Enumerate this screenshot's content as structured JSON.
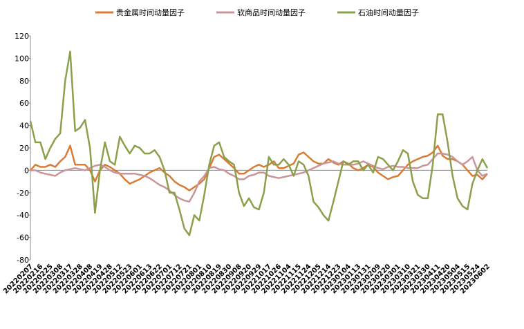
{
  "chart_data": {
    "type": "line",
    "categories": [
      "20220207",
      null,
      "20220216",
      null,
      "20220225",
      null,
      "20220308",
      null,
      "20220317",
      null,
      "20220328",
      null,
      "20220408",
      null,
      "20220419",
      null,
      "20220428",
      null,
      "20220512",
      null,
      "20220523",
      null,
      "20220601",
      null,
      "20220613",
      null,
      "20220622",
      null,
      "20220701",
      null,
      "20220712",
      null,
      "20220721",
      null,
      "20220801",
      null,
      "20220810",
      null,
      "20220819",
      null,
      "20220830",
      null,
      "20220908",
      null,
      "20220920",
      null,
      "20220929",
      null,
      "20221017",
      null,
      "20221026",
      null,
      "20221104",
      null,
      "20221115",
      null,
      "20221124",
      null,
      "20221205",
      null,
      "20221214",
      null,
      "20221223",
      null,
      "20230104",
      null,
      "20230113",
      null,
      "20230131",
      null,
      "20230209",
      null,
      "20230220",
      null,
      "20230301",
      null,
      "20230310",
      null,
      "20230321",
      null,
      "20230330",
      null,
      "20230411",
      null,
      "20230420",
      null,
      "20230504",
      null,
      "20230515",
      null,
      "20230524",
      null,
      "20230602"
    ],
    "series": [
      {
        "name": "贵金属时间动量因子",
        "color": "#d97b35",
        "values": [
          0,
          5,
          3,
          3,
          5,
          3,
          8,
          12,
          22,
          5,
          5,
          5,
          0,
          -10,
          0,
          5,
          3,
          0,
          -3,
          -8,
          -12,
          -10,
          -8,
          -5,
          -2,
          0,
          2,
          -2,
          -5,
          -10,
          -13,
          -15,
          -18,
          -15,
          -12,
          -8,
          2,
          12,
          14,
          10,
          6,
          2,
          -3,
          -3,
          0,
          3,
          5,
          3,
          5,
          8,
          2,
          2,
          4,
          6,
          14,
          16,
          12,
          8,
          6,
          6,
          10,
          7,
          5,
          8,
          6,
          2,
          0,
          2,
          5,
          3,
          -2,
          -5,
          -8,
          -6,
          -5,
          0,
          5,
          8,
          10,
          12,
          13,
          16,
          22,
          13,
          10,
          10,
          8,
          5,
          0,
          -5,
          -4,
          -8,
          -3
        ]
      },
      {
        "name": "软商品时间动量因子",
        "color": "#c9959a",
        "values": [
          0,
          0,
          -2,
          -3,
          -4,
          -5,
          -2,
          0,
          1,
          2,
          1,
          0,
          2,
          4,
          5,
          3,
          0,
          -2,
          -3,
          -3,
          -3,
          -3,
          -4,
          -5,
          -7,
          -10,
          -13,
          -15,
          -18,
          -22,
          -25,
          -27,
          -28,
          -20,
          -10,
          -5,
          2,
          3,
          1,
          0,
          -3,
          -5,
          -8,
          -8,
          -5,
          -4,
          -2,
          -2,
          -5,
          -6,
          -7,
          -6,
          -5,
          -4,
          -3,
          -2,
          0,
          2,
          4,
          6,
          7,
          8,
          6,
          5,
          5,
          5,
          6,
          8,
          6,
          4,
          2,
          1,
          3,
          4,
          3,
          3,
          2,
          2,
          2,
          4,
          5,
          10,
          15,
          15,
          14,
          12,
          8,
          5,
          8,
          12,
          0,
          -5,
          -3
        ]
      },
      {
        "name": "石油时间动量因子",
        "color": "#8aa04a",
        "values": [
          44,
          25,
          25,
          10,
          20,
          28,
          33,
          80,
          106,
          35,
          38,
          45,
          20,
          -38,
          0,
          25,
          8,
          5,
          30,
          22,
          15,
          22,
          20,
          15,
          15,
          18,
          12,
          0,
          -20,
          -20,
          -35,
          -52,
          -58,
          -40,
          -45,
          -22,
          5,
          22,
          25,
          12,
          8,
          5,
          -20,
          -32,
          -25,
          -33,
          -35,
          -20,
          12,
          5,
          5,
          10,
          5,
          -5,
          8,
          5,
          -5,
          -28,
          -33,
          -40,
          -45,
          -28,
          -10,
          8,
          5,
          8,
          8,
          0,
          5,
          -2,
          12,
          10,
          5,
          0,
          8,
          18,
          15,
          -10,
          -22,
          -25,
          -25,
          5,
          50,
          50,
          25,
          -5,
          -25,
          -32,
          -35,
          -12,
          0,
          10,
          2
        ]
      }
    ],
    "ylim": [
      -80,
      120
    ],
    "yticks": [
      -80,
      -60,
      -40,
      -20,
      0,
      20,
      40,
      60,
      80,
      100,
      120
    ],
    "legend": "top"
  }
}
